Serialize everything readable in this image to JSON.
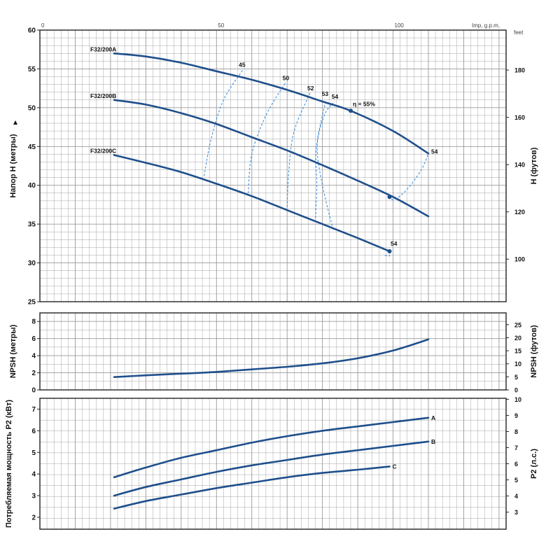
{
  "chart_data": [
    {
      "type": "line",
      "ylabel": "Напор Н (метры)",
      "y2label": "Н (футов)",
      "xlim": [
        0,
        132
      ],
      "ylim": [
        25,
        60
      ],
      "y2lim": [
        82.0,
        196.9
      ],
      "grid": true,
      "top_axis": {
        "unit_label": "Imp, g.p.m,",
        "ticks": [
          {
            "v": 0,
            "label": "0"
          },
          {
            "v": 50,
            "label": "50"
          },
          {
            "v": 100,
            "label": "100"
          }
        ]
      },
      "yticks": [
        25,
        30,
        35,
        40,
        45,
        50,
        55,
        60
      ],
      "y2_unit_label": "feet",
      "y2ticks": [
        100,
        120,
        140,
        160,
        180
      ],
      "series": [
        {
          "name": "F32/200A",
          "x": [
            21,
            30,
            40,
            50,
            60,
            70,
            80,
            88,
            100,
            110
          ],
          "values": [
            57.0,
            56.6,
            55.8,
            54.7,
            53.6,
            52.3,
            50.8,
            49.6,
            47.0,
            44.1
          ]
        },
        {
          "name": "F32/200B",
          "x": [
            21,
            30,
            40,
            50,
            60,
            70,
            80,
            90,
            100,
            110
          ],
          "values": [
            51.0,
            50.4,
            49.3,
            47.9,
            46.2,
            44.5,
            42.6,
            40.6,
            38.5,
            36.0
          ]
        },
        {
          "name": "F32/200C",
          "x": [
            21,
            30,
            40,
            50,
            60,
            70,
            80,
            90,
            99
          ],
          "values": [
            43.9,
            42.9,
            41.7,
            40.2,
            38.6,
            36.8,
            35.0,
            33.2,
            31.5
          ]
        }
      ],
      "efficiency_curves": [
        {
          "label": "45",
          "x": [
            46.5,
            48.5,
            52,
            57.5
          ],
          "values": [
            41.2,
            46,
            51,
            54.9
          ]
        },
        {
          "label": "50",
          "x": [
            59,
            60,
            64,
            69.5
          ],
          "values": [
            39.0,
            44,
            49,
            53.2
          ]
        },
        {
          "label": "52",
          "x": [
            70,
            70.5,
            72,
            76.5
          ],
          "values": [
            37.2,
            42,
            47,
            51.9
          ]
        },
        {
          "label": "53",
          "x": [
            78,
            78.4,
            78.3,
            81
          ],
          "values": [
            35.3,
            40,
            45,
            51.0
          ]
        },
        {
          "label": "54",
          "x": [
            83,
            80,
            78.5,
            80.5,
            83
          ],
          "values": [
            34.3,
            40,
            45,
            49,
            50.6
          ]
        },
        {
          "label": "54",
          "x": [
            98.5,
            100.5,
            104,
            108,
            110
          ],
          "values": [
            38.4,
            38.2,
            39.5,
            42,
            44.1
          ]
        },
        {
          "label": "54",
          "x": [
            98.5,
            99,
            97.5
          ],
          "values": [
            31.5,
            30.9,
            31.0
          ]
        }
      ],
      "efficiency_markers": [
        {
          "x": 88,
          "value": 49.6,
          "label": "η = 55%"
        },
        {
          "x": 99,
          "value": 38.5,
          "label": ""
        },
        {
          "x": 99,
          "value": 31.5,
          "label": ""
        }
      ]
    },
    {
      "type": "line",
      "ylabel": "NPSH (метры)",
      "y2label": "NPSH (футов)",
      "xlim": [
        0,
        132
      ],
      "ylim": [
        0,
        9
      ],
      "y2lim": [
        0,
        29.5
      ],
      "grid": true,
      "yticks": [
        0,
        2,
        4,
        6,
        8
      ],
      "y2ticks": [
        0,
        5,
        10,
        15,
        20,
        25
      ],
      "series": [
        {
          "x": [
            21,
            30,
            40,
            50,
            60,
            70,
            80,
            90,
            100,
            110
          ],
          "values": [
            1.5,
            1.7,
            1.9,
            2.1,
            2.4,
            2.7,
            3.1,
            3.7,
            4.6,
            5.9
          ]
        }
      ]
    },
    {
      "type": "line",
      "ylabel": "Потребляемая мощность P2 (кВт)",
      "y2label": "P2 (л.с.)",
      "xlim": [
        0,
        132
      ],
      "ylim": [
        1.45,
        7.5
      ],
      "y2lim": [
        1.94,
        10.06
      ],
      "grid": true,
      "yticks": [
        2,
        3,
        4,
        5,
        6,
        7
      ],
      "y2ticks": [
        3,
        4,
        5,
        6,
        7,
        8,
        9,
        10
      ],
      "series": [
        {
          "name": "A",
          "x": [
            21,
            30,
            40,
            50,
            60,
            70,
            80,
            90,
            100,
            110
          ],
          "values": [
            3.85,
            4.3,
            4.75,
            5.1,
            5.45,
            5.75,
            6.0,
            6.2,
            6.4,
            6.6
          ]
        },
        {
          "name": "B",
          "x": [
            21,
            30,
            40,
            50,
            60,
            70,
            80,
            90,
            100,
            110
          ],
          "values": [
            3.0,
            3.4,
            3.75,
            4.1,
            4.4,
            4.65,
            4.9,
            5.1,
            5.3,
            5.5
          ]
        },
        {
          "name": "C",
          "x": [
            21,
            30,
            40,
            50,
            60,
            70,
            80,
            90,
            99
          ],
          "values": [
            2.4,
            2.75,
            3.05,
            3.35,
            3.6,
            3.85,
            4.05,
            4.2,
            4.35
          ]
        }
      ]
    }
  ],
  "style": {
    "curve_color": "#1f4f8c",
    "efficiency_color": "#3b8fe0",
    "grid_color": "#9a9a9a",
    "frame_color": "#222222"
  }
}
